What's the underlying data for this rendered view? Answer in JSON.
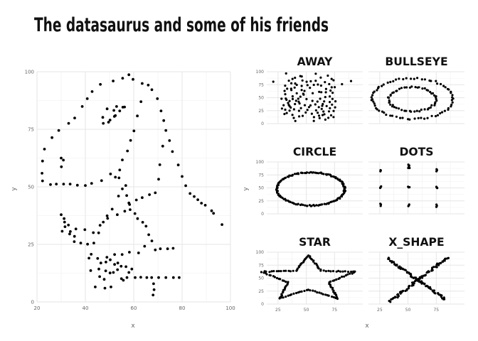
{
  "title": "The datasaurus and some of his friends",
  "axis_x_label": "x",
  "axis_y_label": "y",
  "colors": {
    "points": "#000000",
    "grid": "#e6e6e6",
    "text": "#111111",
    "ticks": "#666666"
  },
  "chart_data": [
    {
      "type": "scatter",
      "name": "dino",
      "title": "",
      "xlabel": "x",
      "ylabel": "y",
      "xlim": [
        20,
        100
      ],
      "ylim": [
        0,
        100
      ],
      "xticks": [
        20,
        40,
        60,
        80,
        100
      ],
      "yticks": [
        0,
        25,
        50,
        75,
        100
      ],
      "grid": true,
      "points": [
        [
          55.4,
          97.2
        ],
        [
          51.5,
          96.0
        ],
        [
          46.2,
          94.5
        ],
        [
          42.8,
          91.4
        ],
        [
          40.8,
          88.3
        ],
        [
          38.7,
          84.9
        ],
        [
          35.6,
          79.9
        ],
        [
          33.1,
          77.6
        ],
        [
          29.0,
          74.5
        ],
        [
          26.2,
          71.4
        ],
        [
          23.1,
          66.4
        ],
        [
          22.3,
          61.2
        ],
        [
          22.1,
          55.9
        ],
        [
          22.3,
          52.6
        ],
        [
          25.6,
          51.0
        ],
        [
          28.0,
          51.2
        ],
        [
          31.0,
          51.2
        ],
        [
          33.7,
          51.2
        ],
        [
          36.7,
          50.7
        ],
        [
          40.0,
          50.6
        ],
        [
          42.6,
          51.5
        ],
        [
          46.7,
          52.7
        ],
        [
          50.4,
          55.6
        ],
        [
          52.4,
          54.2
        ],
        [
          53.9,
          53.9
        ],
        [
          54.2,
          57.3
        ],
        [
          55.3,
          61.7
        ],
        [
          57.4,
          65.6
        ],
        [
          58.7,
          70.2
        ],
        [
          60.1,
          74.3
        ],
        [
          61.5,
          80.8
        ],
        [
          63.0,
          87.0
        ],
        [
          66.0,
          94.2
        ],
        [
          63.5,
          94.9
        ],
        [
          59.7,
          96.7
        ],
        [
          58.0,
          98.7
        ],
        [
          56.2,
          84.7
        ],
        [
          52.9,
          84.9
        ],
        [
          49.0,
          83.9
        ],
        [
          47.2,
          80.2
        ],
        [
          49.6,
          78.1
        ],
        [
          52.0,
          80.6
        ],
        [
          54.2,
          83.0
        ],
        [
          55.5,
          84.6
        ],
        [
          51.8,
          83.2
        ],
        [
          47.4,
          77.6
        ],
        [
          50.2,
          79.0
        ],
        [
          52.4,
          81.0
        ],
        [
          30.0,
          62.5
        ],
        [
          30.9,
          61.6
        ],
        [
          30.1,
          58.7
        ],
        [
          67.5,
          92.2
        ],
        [
          69.8,
          88.3
        ],
        [
          71.3,
          83.0
        ],
        [
          72.4,
          78.8
        ],
        [
          73.3,
          74.5
        ],
        [
          74.8,
          70.1
        ],
        [
          76.0,
          65.3
        ],
        [
          78.4,
          59.5
        ],
        [
          80.0,
          54.5
        ],
        [
          81.5,
          50.5
        ],
        [
          83.3,
          47.1
        ],
        [
          86.5,
          44.4
        ],
        [
          89.6,
          42.0
        ],
        [
          92.2,
          39.6
        ],
        [
          96.5,
          33.6
        ],
        [
          93.0,
          38.5
        ],
        [
          88.0,
          42.9
        ],
        [
          85.0,
          45.8
        ],
        [
          72.0,
          67.7
        ],
        [
          70.8,
          59.6
        ],
        [
          70.3,
          53.3
        ],
        [
          68.9,
          47.4
        ],
        [
          66.5,
          46.6
        ],
        [
          63.5,
          45.3
        ],
        [
          61.1,
          44.3
        ],
        [
          58.3,
          42.3
        ],
        [
          56.3,
          39.4
        ],
        [
          53.2,
          37.9
        ],
        [
          49.2,
          36.3
        ],
        [
          46.1,
          33.3
        ],
        [
          43.3,
          30.1
        ],
        [
          39.8,
          31.4
        ],
        [
          36.1,
          31.7
        ],
        [
          33.0,
          33.4
        ],
        [
          31.2,
          36.2
        ],
        [
          30.0,
          37.9
        ],
        [
          31.6,
          32.7
        ],
        [
          30.4,
          30.7
        ],
        [
          33.5,
          29.5
        ],
        [
          35.4,
          26.2
        ],
        [
          38.1,
          25.6
        ],
        [
          40.9,
          25.1
        ],
        [
          43.5,
          25.6
        ],
        [
          45.5,
          30.0
        ],
        [
          47.4,
          34.7
        ],
        [
          49.0,
          37.4
        ],
        [
          51.1,
          40.3
        ],
        [
          53.7,
          46.0
        ],
        [
          55.3,
          49.1
        ],
        [
          56.7,
          50.6
        ],
        [
          57.1,
          46.2
        ],
        [
          58.0,
          43.0
        ],
        [
          58.5,
          40.1
        ],
        [
          60.5,
          38.4
        ],
        [
          61.6,
          36.2
        ],
        [
          63.7,
          34.6
        ],
        [
          65.1,
          32.9
        ],
        [
          66.2,
          29.2
        ],
        [
          67.5,
          26.5
        ],
        [
          68.9,
          22.6
        ],
        [
          71.0,
          23.1
        ],
        [
          74.0,
          23.1
        ],
        [
          76.3,
          23.3
        ],
        [
          64.5,
          24.2
        ],
        [
          62.0,
          21.3
        ],
        [
          58.2,
          21.6
        ],
        [
          55.2,
          20.6
        ],
        [
          52.1,
          20.6
        ],
        [
          48.9,
          19.4
        ],
        [
          45.1,
          18.9
        ],
        [
          42.4,
          20.7
        ],
        [
          41.5,
          19.0
        ],
        [
          35.5,
          28.5
        ],
        [
          33.8,
          30.6
        ],
        [
          31.4,
          34.7
        ],
        [
          42.2,
          13.6
        ],
        [
          45.6,
          14.3
        ],
        [
          48.4,
          13.5
        ],
        [
          50.2,
          12.6
        ],
        [
          51.6,
          12.8
        ],
        [
          53.3,
          14.0
        ],
        [
          54.8,
          15.5
        ],
        [
          56.8,
          15.3
        ],
        [
          58.0,
          12.8
        ],
        [
          59.2,
          14.3
        ],
        [
          46.4,
          16.9
        ],
        [
          48.5,
          17.3
        ],
        [
          50.3,
          18.3
        ],
        [
          52.1,
          16.3
        ],
        [
          53.4,
          16.9
        ],
        [
          45.9,
          11.0
        ],
        [
          47.8,
          9.8
        ],
        [
          44.1,
          6.5
        ],
        [
          54.9,
          10.1
        ],
        [
          57.2,
          10.6
        ],
        [
          60.6,
          10.6
        ],
        [
          62.9,
          10.7
        ],
        [
          65.4,
          10.6
        ],
        [
          67.4,
          10.6
        ],
        [
          70.3,
          10.6
        ],
        [
          73.3,
          10.6
        ],
        [
          76.4,
          10.6
        ],
        [
          78.8,
          10.6
        ],
        [
          68.2,
          7.9
        ],
        [
          68.4,
          5.3
        ],
        [
          68.0,
          3.0
        ],
        [
          55.7,
          9.4
        ],
        [
          50.6,
          6.5
        ],
        [
          48.1,
          6.0
        ]
      ]
    },
    {
      "type": "scatter",
      "name": "away",
      "title": "away",
      "xlim": [
        15,
        100
      ],
      "ylim": [
        0,
        100
      ],
      "xticks": [
        25,
        50,
        75
      ],
      "yticks": [
        0,
        25,
        50,
        75,
        100
      ],
      "grid": true,
      "points": [
        [
          32.1,
          96.7
        ],
        [
          44.7,
          91.7
        ],
        [
          58.4,
          96.1
        ],
        [
          69.1,
          92.4
        ],
        [
          72.4,
          86.2
        ],
        [
          81.6,
          76.0
        ],
        [
          66.5,
          80.0
        ],
        [
          37.8,
          86.1
        ],
        [
          46.6,
          83.1
        ],
        [
          36.8,
          77.8
        ],
        [
          45.9,
          72.6
        ],
        [
          50.3,
          80.7
        ],
        [
          31.3,
          73.1
        ],
        [
          36.6,
          67.4
        ],
        [
          41.6,
          74.7
        ],
        [
          53.2,
          69.0
        ],
        [
          60.3,
          75.3
        ],
        [
          67.5,
          66.8
        ],
        [
          72.5,
          70.0
        ],
        [
          56.7,
          74.6
        ],
        [
          63.1,
          73.3
        ],
        [
          33.1,
          67.2
        ],
        [
          47.3,
          57.6
        ],
        [
          36.8,
          64.6
        ],
        [
          41.6,
          58.5
        ],
        [
          45.9,
          64.8
        ],
        [
          37.9,
          52.6
        ],
        [
          31.9,
          48.4
        ],
        [
          35.2,
          43.5
        ],
        [
          42.9,
          48.0
        ],
        [
          47.7,
          55.9
        ],
        [
          34.5,
          36.1
        ],
        [
          36.2,
          31.0
        ],
        [
          44.0,
          38.9
        ],
        [
          48.7,
          35.5
        ],
        [
          50.2,
          47.3
        ],
        [
          55.4,
          43.8
        ],
        [
          31.4,
          26.9
        ],
        [
          35.2,
          25.1
        ],
        [
          37.7,
          16.9
        ],
        [
          43.6,
          24.6
        ],
        [
          46.8,
          15.0
        ],
        [
          51.0,
          26.5
        ],
        [
          58.7,
          25.6
        ],
        [
          61.1,
          31.8
        ],
        [
          65.2,
          23.3
        ],
        [
          68.0,
          33.8
        ],
        [
          70.1,
          23.5
        ],
        [
          72.0,
          16.0
        ],
        [
          61.8,
          10.7
        ],
        [
          64.4,
          16.4
        ],
        [
          69.5,
          11.1
        ],
        [
          59.9,
          42.4
        ],
        [
          62.3,
          47.9
        ],
        [
          66.8,
          51.3
        ],
        [
          70.8,
          41.6
        ],
        [
          73.2,
          47.7
        ],
        [
          64.6,
          37.7
        ],
        [
          61.4,
          61.2
        ],
        [
          67.3,
          60.4
        ],
        [
          56.7,
          5.2
        ],
        [
          40.3,
          5.0
        ],
        [
          20.8,
          80.8
        ],
        [
          89.6,
          82.0
        ],
        [
          31.4,
          56.7
        ],
        [
          33.9,
          39.8
        ],
        [
          30.7,
          18.5
        ],
        [
          39.2,
          27.6
        ],
        [
          40.0,
          37.7
        ],
        [
          41.0,
          44.0
        ],
        [
          52.4,
          31.8
        ],
        [
          54.9,
          19.0
        ],
        [
          56.8,
          12.5
        ],
        [
          58.0,
          37.0
        ],
        [
          60.1,
          21.0
        ],
        [
          63.7,
          28.3
        ],
        [
          66.0,
          18.0
        ],
        [
          70.9,
          29.7
        ],
        [
          72.8,
          36.6
        ],
        [
          74.2,
          24.4
        ],
        [
          75.2,
          70.3
        ],
        [
          74.1,
          83.5
        ],
        [
          70.3,
          76.1
        ],
        [
          54.0,
          81.6
        ],
        [
          51.1,
          74.1
        ],
        [
          40.0,
          88.4
        ],
        [
          34.6,
          82.7
        ],
        [
          30.8,
          63.0
        ],
        [
          32.5,
          45.9
        ],
        [
          38.0,
          47.4
        ],
        [
          43.3,
          42.3
        ],
        [
          44.8,
          51.9
        ],
        [
          39.7,
          69.5
        ],
        [
          63.3,
          60.6
        ],
        [
          65.8,
          42.9
        ],
        [
          70.8,
          52.4
        ],
        [
          73.3,
          59.4
        ],
        [
          28.1,
          48.0
        ],
        [
          35.2,
          33.6
        ],
        [
          45.3,
          29.9
        ],
        [
          49.5,
          21.4
        ],
        [
          53.7,
          35.0
        ],
        [
          61.3,
          15.4
        ],
        [
          64.1,
          34.2
        ],
        [
          74.1,
          12.6
        ],
        [
          29.9,
          35.5
        ],
        [
          32.7,
          20.4
        ],
        [
          48.4,
          63.0
        ],
        [
          55.7,
          58.6
        ],
        [
          40.2,
          77.4
        ],
        [
          75.5,
          31.4
        ],
        [
          58.3,
          82.6
        ],
        [
          62.8,
          88.8
        ],
        [
          46.0,
          91.0
        ],
        [
          38.9,
          11.0
        ],
        [
          43.7,
          13.9
        ],
        [
          66.9,
          7.7
        ],
        [
          28.5,
          29.0
        ],
        [
          75.8,
          43.0
        ],
        [
          71.5,
          63.7
        ]
      ]
    },
    {
      "type": "scatter",
      "name": "bullseye",
      "title": "bullseye",
      "xlim": [
        15,
        100
      ],
      "ylim": [
        0,
        100
      ],
      "xticks": [
        25,
        50,
        75
      ],
      "yticks": [
        0,
        25,
        50,
        75,
        100
      ],
      "grid": true
    },
    {
      "type": "scatter",
      "name": "circle",
      "title": "circle",
      "xlim": [
        15,
        100
      ],
      "ylim": [
        0,
        100
      ],
      "xticks": [
        25,
        50,
        75
      ],
      "yticks": [
        0,
        25,
        50,
        75,
        100
      ],
      "grid": true
    },
    {
      "type": "scatter",
      "name": "dots",
      "title": "dots",
      "xlim": [
        15,
        100
      ],
      "ylim": [
        0,
        100
      ],
      "xticks": [
        25,
        50,
        75
      ],
      "yticks": [
        0,
        25,
        50,
        75,
        100
      ],
      "grid": true,
      "points": [
        [
          25.6,
          82.0
        ],
        [
          25.9,
          83.6
        ],
        [
          25.7,
          84.3
        ],
        [
          50.7,
          91.3
        ],
        [
          51.1,
          93.2
        ],
        [
          50.3,
          94.9
        ],
        [
          50.9,
          92.0
        ],
        [
          75.2,
          82.1
        ],
        [
          75.7,
          84.3
        ],
        [
          75.3,
          86.0
        ],
        [
          25.4,
          50.0
        ],
        [
          25.9,
          51.8
        ],
        [
          26.2,
          53.0
        ],
        [
          50.6,
          50.9
        ],
        [
          51.3,
          51.4
        ],
        [
          50.1,
          52.3
        ],
        [
          75.9,
          49.7
        ],
        [
          75.5,
          50.6
        ],
        [
          75.1,
          52.1
        ],
        [
          25.8,
          15.2
        ],
        [
          26.0,
          17.9
        ],
        [
          25.5,
          19.4
        ],
        [
          50.3,
          15.0
        ],
        [
          50.8,
          16.6
        ],
        [
          51.1,
          18.1
        ],
        [
          75.1,
          13.4
        ],
        [
          75.6,
          15.6
        ],
        [
          75.2,
          17.8
        ],
        [
          50.2,
          88.3
        ],
        [
          51.4,
          88.4
        ]
      ]
    },
    {
      "type": "scatter",
      "name": "star",
      "title": "star",
      "xlim": [
        15,
        100
      ],
      "ylim": [
        0,
        100
      ],
      "xticks": [
        25,
        50,
        75
      ],
      "yticks": [
        0,
        25,
        50,
        75,
        100
      ],
      "grid": true
    },
    {
      "type": "scatter",
      "name": "x_shape",
      "title": "x_shape",
      "xlim": [
        15,
        100
      ],
      "ylim": [
        0,
        100
      ],
      "xticks": [
        25,
        50,
        75
      ],
      "yticks": [
        0,
        25,
        50,
        75,
        100
      ],
      "grid": true
    }
  ]
}
